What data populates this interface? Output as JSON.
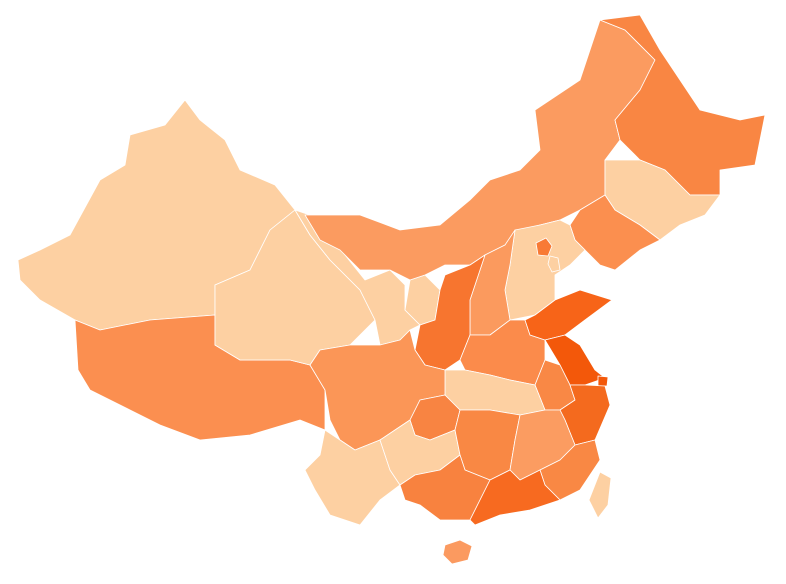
{
  "map": {
    "type": "choropleth",
    "border_color": "#ffffff",
    "background": "#ffffff",
    "color_scale": [
      "#fdd0a2",
      "#fb9a5e",
      "#f98843",
      "#f76a20",
      "#f3580a"
    ],
    "regions": [
      {
        "id": "xinjiang",
        "color": "#fdd0a2"
      },
      {
        "id": "tibet",
        "color": "#fb8f50"
      },
      {
        "id": "qinghai",
        "color": "#fdd0a2"
      },
      {
        "id": "gansu",
        "color": "#fdd0a2"
      },
      {
        "id": "ningxia",
        "color": "#fdd0a2"
      },
      {
        "id": "inner-mongolia",
        "color": "#fb9b60"
      },
      {
        "id": "heilongjiang",
        "color": "#f98643"
      },
      {
        "id": "jilin",
        "color": "#fdd0a2"
      },
      {
        "id": "liaoning",
        "color": "#fb8f4f"
      },
      {
        "id": "hebei",
        "color": "#fdd0a2"
      },
      {
        "id": "beijing",
        "color": "#f87a35"
      },
      {
        "id": "tianjin",
        "color": "#fdd0a2"
      },
      {
        "id": "shanxi",
        "color": "#fb9a5e"
      },
      {
        "id": "shaanxi",
        "color": "#f7752f"
      },
      {
        "id": "henan",
        "color": "#fb8b4b"
      },
      {
        "id": "shandong",
        "color": "#f76418"
      },
      {
        "id": "jiangsu",
        "color": "#f3580a"
      },
      {
        "id": "shanghai",
        "color": "#f3580a"
      },
      {
        "id": "anhui",
        "color": "#f98845"
      },
      {
        "id": "zhejiang",
        "color": "#f46a1e"
      },
      {
        "id": "hubei",
        "color": "#fdd0a2"
      },
      {
        "id": "sichuan",
        "color": "#fb9657"
      },
      {
        "id": "chongqing",
        "color": "#f88442"
      },
      {
        "id": "yunnan",
        "color": "#fdd0a2"
      },
      {
        "id": "guizhou",
        "color": "#fdd0a2"
      },
      {
        "id": "hunan",
        "color": "#f98844"
      },
      {
        "id": "jiangxi",
        "color": "#fb9c61"
      },
      {
        "id": "fujian",
        "color": "#f98844"
      },
      {
        "id": "guangxi",
        "color": "#f8823f"
      },
      {
        "id": "guangdong",
        "color": "#f76a20"
      },
      {
        "id": "hainan",
        "color": "#fb9a60"
      },
      {
        "id": "taiwan",
        "color": "#fdd0a2"
      }
    ]
  }
}
